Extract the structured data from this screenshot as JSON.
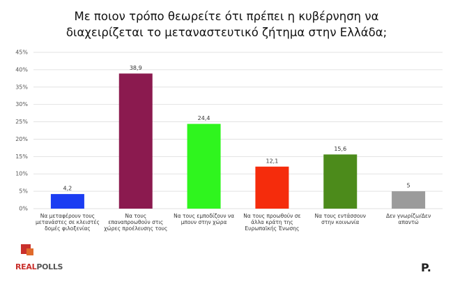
{
  "chart_data": {
    "type": "bar",
    "title": "Με ποιον τρόπο θεωρείτε ότι πρέπει η κυβέρνηση να διαχειρίζεται το μεταναστευτικό ζήτημα στην Ελλάδα;",
    "categories": [
      "Να μεταφέρουν τους μετανάστες σε κλειστές δομές φιλοξενίας",
      "Να τους επαναπροωθούν στις χώρες προέλευσης τους",
      "Να τους εμποδίζουν να μπουν στην χώρα",
      "Να τους προωθούν σε άλλα κράτη της Ευρωπαϊκής Ένωσης",
      "Να τους εντάσσουν στην κοινωνία",
      "Δεν γνωρίζω/Δεν απαντώ"
    ],
    "values": [
      4.2,
      38.9,
      24.4,
      12.1,
      15.6,
      5
    ],
    "value_labels": [
      "4,2",
      "38,9",
      "24,4",
      "12,1",
      "15,6",
      "5"
    ],
    "colors": [
      "#1b3df2",
      "#8b1a4f",
      "#2ff51e",
      "#f52c0c",
      "#4c8b1b",
      "#9b9b9b"
    ],
    "ylim": [
      0,
      45
    ],
    "yticks": [
      {
        "value": 0,
        "label": "0%"
      },
      {
        "value": 5,
        "label": "5%"
      },
      {
        "value": 10,
        "label": "10%"
      },
      {
        "value": 15,
        "label": "15%"
      },
      {
        "value": 20,
        "label": "20%"
      },
      {
        "value": 25,
        "label": "25%"
      },
      {
        "value": 30,
        "label": "30%"
      },
      {
        "value": 35,
        "label": "35%"
      },
      {
        "value": 40,
        "label": "40%"
      },
      {
        "value": 45,
        "label": "45%"
      }
    ],
    "grid": true
  },
  "branding": {
    "left_a": "REAL",
    "left_b": "POLLS",
    "right": "P."
  }
}
